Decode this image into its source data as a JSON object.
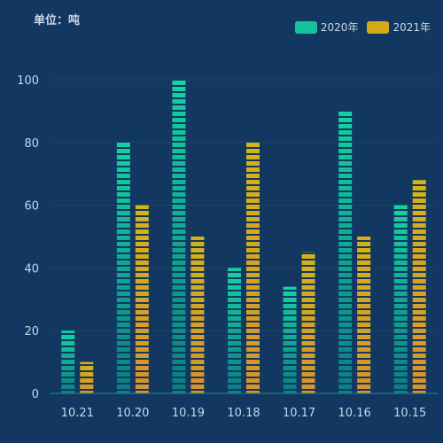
{
  "chart_data": {
    "type": "bar",
    "unit_label": "单位：吨",
    "categories": [
      "10.21",
      "10.20",
      "10.19",
      "10.18",
      "10.17",
      "10.16",
      "10.15"
    ],
    "series": [
      {
        "name": "2020年",
        "values": [
          20,
          80,
          100,
          40,
          34,
          90,
          60
        ],
        "color_top": "#13d3a3",
        "color_bottom": "#0c7d83"
      },
      {
        "name": "2021年",
        "values": [
          10,
          60,
          50,
          80,
          45,
          50,
          68
        ],
        "color_top": "#d4b418",
        "color_bottom": "#d7922d"
      }
    ],
    "ylim": [
      0,
      100
    ],
    "yticks": [
      0,
      20,
      40,
      60,
      80,
      100
    ],
    "grid": true,
    "legend_position": "top-right",
    "colors": {
      "background": "#123760",
      "gridline": "#1d4762",
      "axis_line": "#1b8f90",
      "text": "#c8d7ea",
      "legend_2020": "#14c59b",
      "legend_2021": "#d4ab17"
    }
  }
}
